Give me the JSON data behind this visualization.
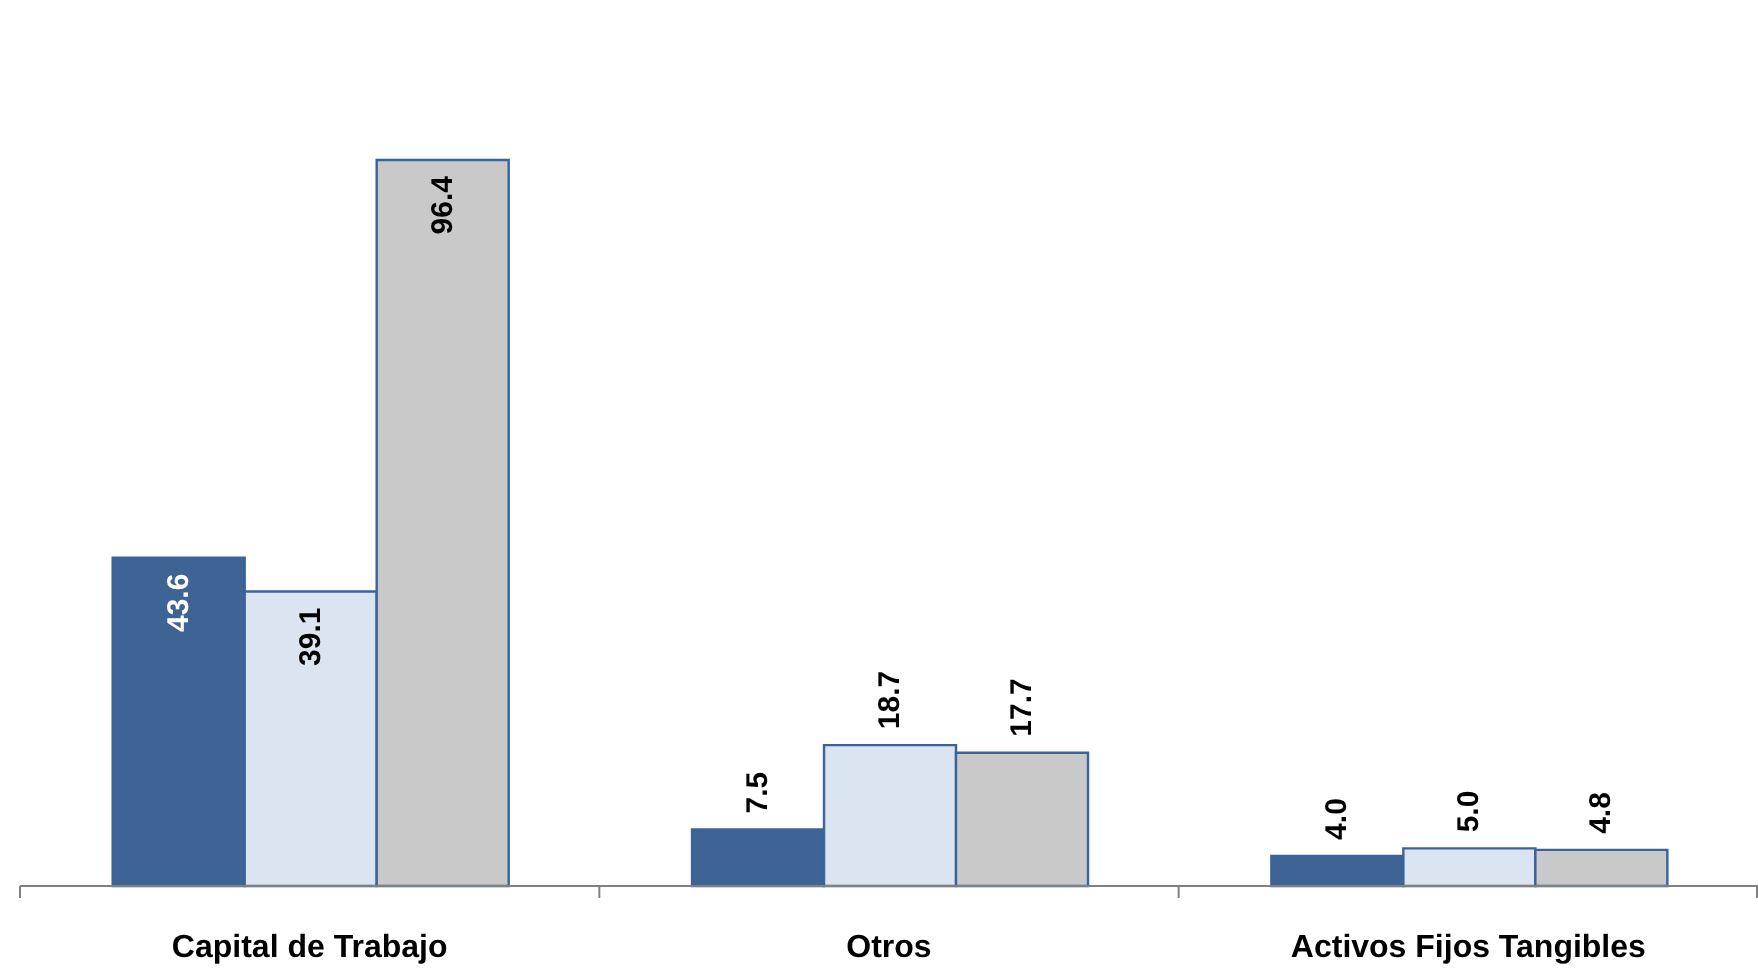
{
  "chart_data": {
    "type": "bar",
    "categories": [
      "Capital de Trabajo",
      "Otros",
      "Activos Fijos Tangibles"
    ],
    "series": [
      {
        "color": "#3e6496",
        "values": [
          43.6,
          7.5,
          4.0
        ],
        "value_labels": [
          "43.6",
          "7.5",
          "4.0"
        ]
      },
      {
        "color": "#dbe5f1",
        "values": [
          39.1,
          18.7,
          5.0
        ],
        "value_labels": [
          "39.1",
          "18.7",
          "5.0"
        ]
      },
      {
        "color": "#c9c9c9",
        "values": [
          96.4,
          17.7,
          4.8
        ],
        "value_labels": [
          "96.4",
          "17.7",
          "4.8"
        ]
      }
    ],
    "grid": false,
    "legend": false
  }
}
